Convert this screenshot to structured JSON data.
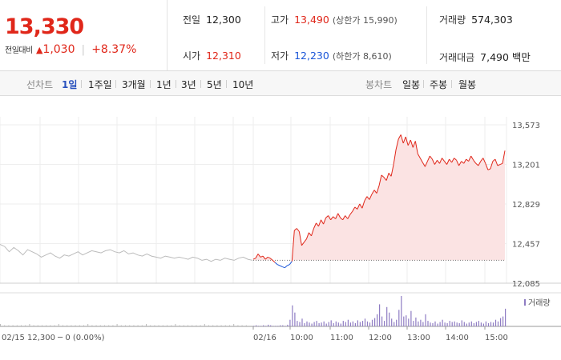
{
  "price": {
    "current": "13,330",
    "change_label": "전일대비",
    "change_amount": "1,030",
    "change_rate": "+8.37%"
  },
  "info": {
    "prev_close": {
      "label": "전일",
      "value": "12,300"
    },
    "open": {
      "label": "시가",
      "value": "12,310"
    },
    "high": {
      "label": "고가",
      "value": "13,490",
      "limit": "(상한가 15,990)"
    },
    "low": {
      "label": "저가",
      "value": "12,230",
      "limit": "(하한가 8,610)"
    },
    "volume": {
      "label": "거래량",
      "value": "574,303"
    },
    "amount": {
      "label": "거래대금",
      "value": "7,490 백만"
    }
  },
  "toolbar": {
    "line_label": "선차트",
    "line_periods": [
      "1일",
      "1주일",
      "3개월",
      "1년",
      "3년",
      "5년",
      "10년"
    ],
    "active_period": "1일",
    "candle_label": "봉차트",
    "candle_periods": [
      "일봉",
      "주봉",
      "월봉"
    ]
  },
  "chart_data": {
    "type": "line",
    "y_ticks": [
      12085,
      12457,
      12829,
      13201,
      13573
    ],
    "y_tick_labels": [
      "12,085",
      "12,457",
      "12,829",
      "13,201",
      "13,573"
    ],
    "ylim": [
      12085,
      13573
    ],
    "baseline": 12300,
    "x_tick_labels": [
      "02/16",
      "10:00",
      "11:00",
      "12:00",
      "13:00",
      "14:00",
      "15:00"
    ],
    "prev_day_label": "02/15",
    "prev_day_info": "12,300 ─ 0 (0.00%)",
    "volume_legend": "거래량",
    "colors": {
      "up": "#e0271a",
      "down": "#1b56d8",
      "prev": "#bbbbbb",
      "volume": "#8e7cc3",
      "fill": "#fbe3e3"
    },
    "prev_day_series": [
      12450,
      12430,
      12380,
      12420,
      12390,
      12350,
      12400,
      12380,
      12360,
      12330,
      12350,
      12370,
      12340,
      12320,
      12350,
      12340,
      12360,
      12380,
      12350,
      12370,
      12390,
      12380,
      12370,
      12390,
      12400,
      12380,
      12370,
      12390,
      12360,
      12370,
      12350,
      12340,
      12360,
      12340,
      12330,
      12320,
      12340,
      12330,
      12320,
      12330,
      12320,
      12310,
      12330,
      12320,
      12300,
      12310,
      12290,
      12310,
      12300,
      12320,
      12310,
      12300,
      12320,
      12330,
      12310,
      12300
    ],
    "series": [
      {
        "values": [
          12310,
          12320,
          12360,
          12330,
          12340,
          12310,
          12330,
          12320,
          12300,
          12280,
          12260,
          12250,
          12240,
          12230,
          12250,
          12260,
          12290,
          12580,
          12600,
          12570,
          12440,
          12470,
          12500,
          12560,
          12530,
          12600,
          12650,
          12620,
          12680,
          12640,
          12700,
          12720,
          12680,
          12710,
          12690,
          12740,
          12700,
          12680,
          12720,
          12690,
          12730,
          12760,
          12800,
          12780,
          12830,
          12790,
          12860,
          12900,
          12870,
          12920,
          12960,
          12930,
          13000,
          13100,
          13080,
          13050,
          13120,
          13090,
          13200,
          13340,
          13440,
          13480,
          13400,
          13460,
          13380,
          13430,
          13360,
          13420,
          13300,
          13260,
          13220,
          13180,
          13230,
          13280,
          13250,
          13200,
          13240,
          13210,
          13260,
          13230,
          13200,
          13250,
          13220,
          13260,
          13240,
          13190,
          13230,
          13210,
          13250,
          13230,
          13280,
          13240,
          13210,
          13190,
          13230,
          13260,
          13210,
          13150,
          13160,
          13230,
          13250,
          13190,
          13200,
          13210,
          13330
        ]
      }
    ],
    "volume": [
      1,
      2,
      1,
      1,
      2,
      1,
      3,
      2,
      1,
      1,
      1,
      2,
      2,
      1,
      3,
      12,
      38,
      25,
      10,
      8,
      14,
      6,
      9,
      7,
      5,
      8,
      10,
      6,
      7,
      9,
      5,
      8,
      11,
      6,
      9,
      7,
      5,
      10,
      8,
      12,
      7,
      9,
      6,
      11,
      8,
      10,
      14,
      9,
      7,
      12,
      15,
      22,
      40,
      18,
      10,
      35,
      25,
      14,
      8,
      12,
      30,
      55,
      18,
      20,
      14,
      28,
      10,
      16,
      9,
      12,
      8,
      22,
      10,
      7,
      6,
      9,
      5,
      8,
      12,
      7,
      6,
      10,
      8,
      9,
      7,
      6,
      11,
      8,
      5,
      7,
      9,
      6,
      8,
      10,
      7,
      5,
      9,
      6,
      8,
      7,
      12,
      9,
      15,
      18,
      32
    ]
  }
}
